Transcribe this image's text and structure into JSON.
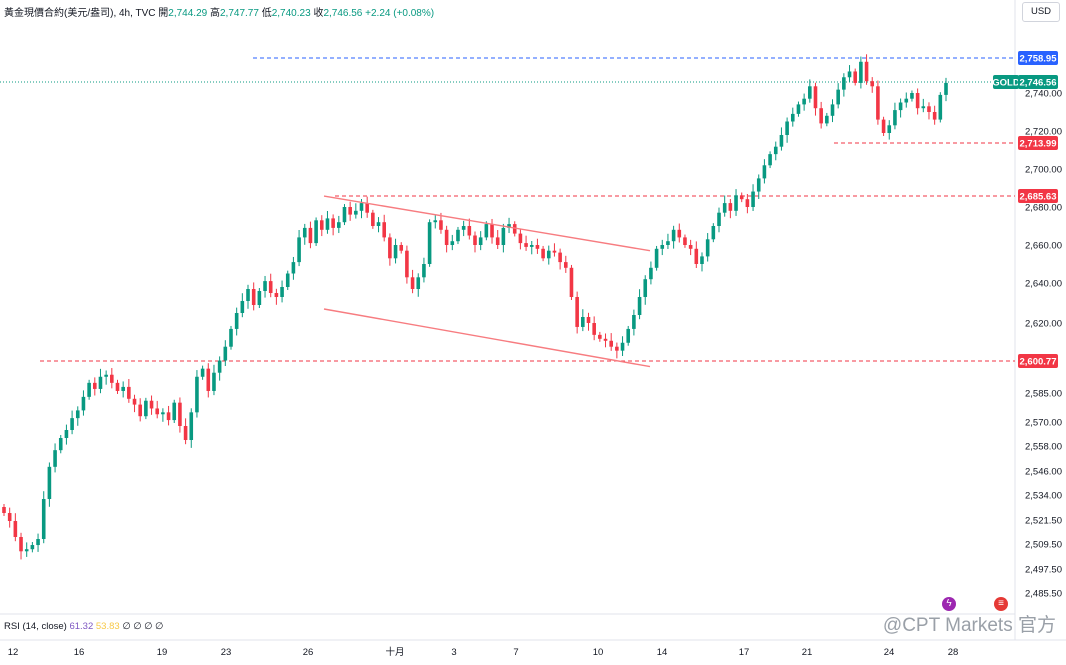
{
  "header": {
    "symbol": "黃金現價合約(美元/盎司), 4h, TVC",
    "open_label": "開",
    "open": "2,744.29",
    "high_label": "高",
    "high": "2,747.77",
    "low_label": "低",
    "low": "2,740.23",
    "close_label": "收",
    "close": "2,746.56",
    "change": "+2.24 (+0.08%)"
  },
  "currency_button": "USD",
  "rsi": {
    "label": "RSI (14, close)",
    "v1": "61.32",
    "v2": "53.83",
    "rest": "∅ ∅ ∅ ∅"
  },
  "watermark": "@CPT Markets 官方",
  "colors": {
    "up": "#089981",
    "down": "#f23645",
    "blue": "#2962ff",
    "line": "#f77c80"
  },
  "chart_data": {
    "type": "candlestick",
    "x_ticks": [
      "12",
      "16",
      "19",
      "23",
      "26",
      "十月",
      "3",
      "7",
      "10",
      "14",
      "17",
      "21",
      "24",
      "28"
    ],
    "y_ticks": [
      "2,740.00",
      "2,720.00",
      "2,700.00",
      "2,680.00",
      "2,660.00",
      "2,640.00",
      "2,620.00",
      "2,585.00",
      "2,570.00",
      "2,558.00",
      "2,546.00",
      "2,534.00",
      "2,521.50",
      "2,509.50",
      "2,497.50",
      "2,485.50"
    ],
    "price_labels": [
      {
        "text": "2,758.95",
        "value": 2758.95,
        "color": "#2962ff"
      },
      {
        "text": "GOLD",
        "value": 2746.56,
        "color": "#089981"
      },
      {
        "text": "2,746.56",
        "value": 2746.56,
        "color": "#089981"
      },
      {
        "text": "2,713.99",
        "value": 2713.99,
        "color": "#f23645"
      },
      {
        "text": "2,685.63",
        "value": 2685.63,
        "color": "#f23645"
      },
      {
        "text": "2,600.77",
        "value": 2600.77,
        "color": "#f23645"
      }
    ],
    "hlines": [
      {
        "value": 2758.95,
        "color": "#2962ff",
        "from": "23"
      },
      {
        "value": 2713.99,
        "color": "#f23645",
        "from": "21"
      },
      {
        "value": 2685.63,
        "color": "#f23645",
        "from": "26"
      },
      {
        "value": 2600.77,
        "color": "#f23645",
        "from": "12"
      }
    ],
    "channel": {
      "upper": [
        [
          2685.6,
          "26"
        ],
        [
          2657,
          "14"
        ]
      ],
      "lower": [
        [
          2627,
          "26"
        ],
        [
          2598,
          "14"
        ]
      ]
    },
    "closes": [
      2525,
      2521,
      2513,
      2506,
      2507,
      2509,
      2512,
      2532,
      2548,
      2556,
      2562,
      2566,
      2572,
      2576,
      2583,
      2590,
      2587,
      2593,
      2594,
      2590,
      2586,
      2588,
      2582,
      2579,
      2573,
      2581,
      2577,
      2574,
      2575,
      2571,
      2580,
      2568,
      2561,
      2575,
      2593,
      2597,
      2586,
      2595,
      2601,
      2608,
      2617,
      2625,
      2631,
      2637,
      2629,
      2636,
      2641,
      2635,
      2633,
      2638,
      2645,
      2651,
      2664,
      2669,
      2661,
      2673,
      2668,
      2674,
      2669,
      2672,
      2680,
      2676,
      2678,
      2682,
      2677,
      2670,
      2672,
      2664,
      2653,
      2660,
      2657,
      2643,
      2637,
      2643,
      2650,
      2672,
      2673,
      2668,
      2660,
      2662,
      2668,
      2670,
      2665,
      2660,
      2664,
      2671,
      2664,
      2660,
      2669,
      2671,
      2666,
      2661,
      2659,
      2660,
      2658,
      2653,
      2657,
      2656,
      2651,
      2648,
      2633,
      2618,
      2623,
      2620,
      2614,
      2612,
      2611,
      2608,
      2606,
      2610,
      2617,
      2624,
      2633,
      2642,
      2648,
      2658,
      2660,
      2662,
      2668,
      2664,
      2660,
      2658,
      2650,
      2654,
      2663,
      2670,
      2677,
      2682,
      2678,
      2686,
      2684,
      2680,
      2688,
      2695,
      2702,
      2708,
      2712,
      2718,
      2725,
      2729,
      2734,
      2737,
      2744,
      2732,
      2724,
      2728,
      2734,
      2742,
      2749,
      2752,
      2746,
      2757,
      2747,
      2744,
      2726,
      2719,
      2723,
      2731,
      2735,
      2737,
      2740,
      2732,
      2733,
      2730,
      2726,
      2739,
      2746
    ]
  }
}
